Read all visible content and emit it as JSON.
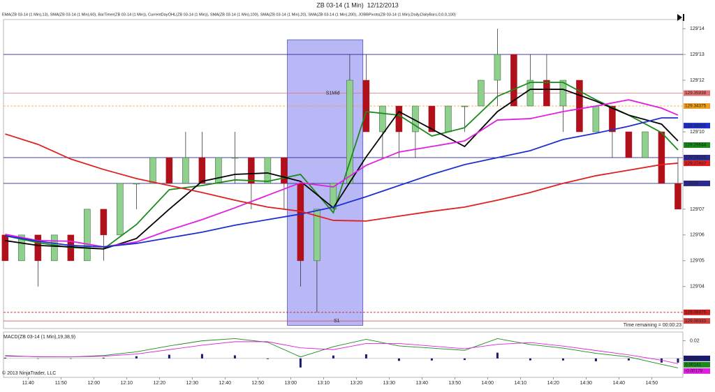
{
  "chart_data": {
    "type": "candlestick",
    "title": "ZB 03-14 (1 Min)  12/12/2013",
    "indicators": "EMA(ZB 03-14 (1 Min),13), SMA(ZB 03-14 (1 Min),60), BarTimer(ZB 03-14 (1 Min)), CurrentDayOHL(ZB 03-14 (1 Min)), SMA(ZB 03-14 (1 Min),100), SMA(ZB 03-14 (1 Min),20), SMA(ZB 03-14 (1 Min),200), JOBBPivots(ZB 03-14 (1 Min),Daily,DailyBars,0,0,0,100)",
    "time_remaining": "Time remaining = 00:00:23",
    "copyright": "© 2013 NinjaTrader, LLC",
    "xlim": [
      692.5,
      899.5
    ],
    "ylim": [
      129.075,
      129.457
    ],
    "xticks": [
      {
        "value": 700,
        "label": "11:40"
      },
      {
        "value": 710,
        "label": "11:50"
      },
      {
        "value": 720,
        "label": "12:00"
      },
      {
        "value": 730,
        "label": "12:10"
      },
      {
        "value": 740,
        "label": "12:20"
      },
      {
        "value": 750,
        "label": "12:30"
      },
      {
        "value": 760,
        "label": "12:40"
      },
      {
        "value": 770,
        "label": "12:50"
      },
      {
        "value": 780,
        "label": "13:00"
      },
      {
        "value": 790,
        "label": "13:10"
      },
      {
        "value": 800,
        "label": "13:20"
      },
      {
        "value": 810,
        "label": "13:30"
      },
      {
        "value": 820,
        "label": "13:40"
      },
      {
        "value": 830,
        "label": "13:50"
      },
      {
        "value": 840,
        "label": "14:00"
      },
      {
        "value": 850,
        "label": "14:10"
      },
      {
        "value": 860,
        "label": "14:20"
      },
      {
        "value": 870,
        "label": "14:30"
      },
      {
        "value": 880,
        "label": "14:40"
      },
      {
        "value": 890,
        "label": "14:50"
      }
    ],
    "yticks": [
      {
        "value": 129.4375,
        "label": "129'14"
      },
      {
        "value": 129.40625,
        "label": "129'13"
      },
      {
        "value": 129.375,
        "label": "129'12"
      },
      {
        "value": 129.3125,
        "label": "129'10"
      },
      {
        "value": 129.21875,
        "label": "129'07"
      },
      {
        "value": 129.1875,
        "label": "129'06"
      },
      {
        "value": 129.15625,
        "label": "129'05"
      },
      {
        "value": 129.125,
        "label": "129'04"
      }
    ],
    "highlight": {
      "x": [
        779,
        802
      ],
      "y": [
        129.078,
        129.424
      ],
      "color": "#a0a0f4"
    },
    "levels": [
      {
        "value": 129.40625,
        "color": "#2a2a90",
        "dash": false
      },
      {
        "value": 129.35938,
        "color": "#e07070",
        "dash": false,
        "label": "S1Mid"
      },
      {
        "value": 129.34375,
        "color": "#f0a020",
        "dash": true
      },
      {
        "value": 129.28125,
        "color": "#2a2a90",
        "dash": false
      },
      {
        "value": 129.25,
        "color": "#2a2a90",
        "dash": false
      },
      {
        "value": 129.09375,
        "color": "#d02020",
        "dash": true
      },
      {
        "value": 129.08333,
        "color": "#d04040",
        "dash": false,
        "label": "S1"
      }
    ],
    "markers": [
      {
        "value": 129.35938,
        "color": "#e07070"
      },
      {
        "value": 129.34375,
        "color": "#f0a020"
      },
      {
        "value": 129.32,
        "label": "129.32000",
        "color": "#1f2fcf"
      },
      {
        "value": 129.29644,
        "color": "#1a8a1a"
      },
      {
        "value": 129.28125,
        "color": "#2a2a90"
      },
      {
        "value": 129.27437,
        "color": "#e02020"
      },
      {
        "value": 129.25,
        "label": "129'08",
        "color": "#2a2a90"
      },
      {
        "value": 129.09375,
        "color": "#d02020"
      },
      {
        "value": 129.08333,
        "color": "#d04040"
      }
    ],
    "ohlc": {
      "x": [
        693,
        698,
        703,
        708,
        713,
        718,
        723,
        728,
        733,
        738,
        743,
        748,
        753,
        758,
        763,
        768,
        773,
        778,
        783,
        788,
        793,
        798,
        803,
        808,
        813,
        818,
        823,
        828,
        833,
        838,
        843,
        848,
        853,
        858,
        863,
        868,
        873,
        878,
        883,
        888,
        893,
        898
      ],
      "open": [
        129.1875,
        129.15625,
        129.1875,
        129.15625,
        129.1875,
        129.15625,
        129.21875,
        129.1875,
        129.25,
        129.25,
        129.28125,
        129.25,
        129.28125,
        129.25,
        129.28125,
        129.28125,
        129.25,
        129.28125,
        129.25,
        129.15625,
        129.21875,
        129.25,
        129.375,
        129.3125,
        129.34375,
        129.3125,
        129.34375,
        129.3125,
        129.34375,
        129.34375,
        129.375,
        129.40625,
        129.34375,
        129.375,
        129.34375,
        129.375,
        129.3125,
        129.34375,
        129.3125,
        129.28125,
        129.3125,
        129.25
      ],
      "high": [
        129.1875,
        129.1875,
        129.1875,
        129.1875,
        129.1875,
        129.21875,
        129.21875,
        129.25,
        129.25,
        129.28125,
        129.28125,
        129.3125,
        129.3125,
        129.28125,
        129.3125,
        129.28125,
        129.28125,
        129.28125,
        129.25,
        129.21875,
        129.25,
        129.40625,
        129.40625,
        129.34375,
        129.34375,
        129.34375,
        129.34375,
        129.34375,
        129.34375,
        129.375,
        129.4375,
        129.40625,
        129.40625,
        129.40625,
        129.375,
        129.375,
        129.34375,
        129.34375,
        129.3125,
        129.3125,
        129.3125,
        129.28125
      ],
      "low": [
        129.15625,
        129.15625,
        129.125,
        129.15625,
        129.15625,
        129.15625,
        129.15625,
        129.1875,
        129.21875,
        129.25,
        129.25,
        129.25,
        129.25,
        129.25,
        129.25,
        129.21875,
        129.25,
        129.21875,
        129.125,
        129.09375,
        129.21875,
        129.25,
        129.3125,
        129.28125,
        129.28125,
        129.28125,
        129.3125,
        129.3125,
        129.3125,
        129.34375,
        129.34375,
        129.34375,
        129.34375,
        129.34375,
        129.3125,
        129.3125,
        129.3125,
        129.28125,
        129.28125,
        129.28125,
        129.25,
        129.21875
      ],
      "close": [
        129.15625,
        129.1875,
        129.15625,
        129.1875,
        129.15625,
        129.21875,
        129.1875,
        129.25,
        129.25,
        129.28125,
        129.25,
        129.28125,
        129.25,
        129.28125,
        129.28125,
        129.25,
        129.28125,
        129.25,
        129.15625,
        129.21875,
        129.25,
        129.375,
        129.3125,
        129.34375,
        129.3125,
        129.34375,
        129.3125,
        129.34375,
        129.34375,
        129.375,
        129.40625,
        129.34375,
        129.375,
        129.34375,
        129.375,
        129.3125,
        129.34375,
        129.3125,
        129.28125,
        129.3125,
        129.25,
        129.21875
      ],
      "up_color": "#8fd08f",
      "down_color": "#b0101a"
    },
    "x": [
      693,
      703,
      713,
      723,
      733,
      743,
      753,
      763,
      773,
      783,
      793,
      803,
      813,
      823,
      833,
      843,
      853,
      863,
      873,
      883,
      893,
      898
    ],
    "series": [
      {
        "color": "#1a8a1a",
        "values": [
          129.1866,
          129.1782,
          129.1723,
          129.1706,
          129.2001,
          129.2424,
          129.2474,
          129.2542,
          129.2525,
          129.2609,
          129.2145,
          129.337,
          129.3327,
          129.3074,
          129.3175,
          129.3555,
          129.3724,
          129.3724,
          129.3513,
          129.3327,
          129.3116,
          129.2905
        ]
      },
      {
        "color": "#000000",
        "values": [
          129.1807,
          129.1748,
          129.1731,
          129.1706,
          129.1832,
          129.2187,
          129.2525,
          129.2609,
          129.2626,
          129.2525,
          129.2204,
          129.2821,
          129.337,
          129.3158,
          129.2947,
          129.337,
          129.364,
          129.364,
          129.3496,
          129.3327,
          129.3218,
          129.3015
        ]
      },
      {
        "color": "#e020e0",
        "values": [
          129.1883,
          129.1807,
          129.1799,
          129.1731,
          129.179,
          129.1934,
          129.2061,
          129.2204,
          129.2356,
          129.2508,
          129.2457,
          129.2719,
          129.288,
          129.2947,
          129.3015,
          129.3268,
          129.3285,
          129.337,
          129.3437,
          129.3513,
          129.3412,
          129.3327
        ]
      },
      {
        "color": "#1f2fcf",
        "values": [
          129.1866,
          129.1799,
          129.1748,
          129.1731,
          129.1773,
          129.1841,
          129.1909,
          129.1993,
          129.2061,
          129.2128,
          129.2213,
          129.2339,
          129.2474,
          129.2609,
          129.2728,
          129.2812,
          129.2897,
          129.3032,
          129.3108,
          129.3192,
          129.3294,
          129.3294
        ]
      },
      {
        "color": "#e02020",
        "values": [
          129.3099,
          129.2973,
          129.2795,
          129.2669,
          129.2559,
          129.2474,
          129.239,
          129.2297,
          129.2213,
          129.2162,
          129.2052,
          129.2044,
          129.2103,
          129.2162,
          129.2213,
          129.2297,
          129.239,
          129.25,
          129.2593,
          129.266,
          129.2728,
          129.2745
        ]
      }
    ],
    "macd": {
      "title": "MACD(ZB 03-14 (1 Min),19,38,9)",
      "ylim": [
        -0.0215,
        0.03
      ],
      "yticks": [
        0.02
      ],
      "boxes": [
        "0.00381",
        "0.00141",
        "-0.00178"
      ],
      "macd": [
        0.0033,
        0.0017,
        0.0017,
        0.0033,
        0.0075,
        0.0142,
        0.02,
        0.0225,
        0.0183,
        0.0017,
        0.0133,
        0.0217,
        0.0142,
        0.0117,
        0.0092,
        0.0225,
        0.0158,
        0.0117,
        0.0058,
        0.0017,
        -0.0067,
        -0.0108
      ],
      "signal": [
        0.0025,
        0.002,
        0.0017,
        0.0025,
        0.005,
        0.01,
        0.015,
        0.019,
        0.019,
        0.012,
        0.01,
        0.017,
        0.017,
        0.014,
        0.011,
        0.016,
        0.018,
        0.014,
        0.009,
        0.004,
        -0.002,
        -0.006
      ],
      "histogram": [
        0.0008,
        -0.0003,
        0,
        0.0008,
        0.0025,
        0.0042,
        0.005,
        0.0035,
        -0.0007,
        -0.0103,
        0.0033,
        0.0047,
        -0.0028,
        -0.0023,
        -0.0018,
        0.0065,
        -0.0022,
        -0.0023,
        -0.0032,
        -0.0023,
        -0.0047,
        -0.0048
      ],
      "macd_color": "#1a8a1a",
      "signal_color": "#e020e0",
      "histogram_color": "#1a1a70"
    }
  }
}
